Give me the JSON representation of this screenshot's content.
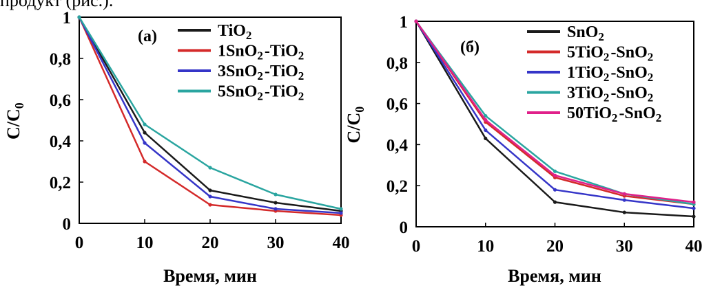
{
  "header": {
    "text": "продукт (рис.)."
  },
  "colors": {
    "black": "#1a1a1a",
    "red": "#d42a2a",
    "blue": "#3535c8",
    "teal": "#2aa5a0",
    "magenta": "#e0208a"
  },
  "chart_data": [
    {
      "type": "line",
      "panel_label": "(a)",
      "xlabel": "Время, мин",
      "ylabel": "C/C₀",
      "x": [
        0,
        10,
        20,
        30,
        40
      ],
      "xticks": [
        "0",
        "10",
        "20",
        "30",
        "40"
      ],
      "yticks": [
        "0",
        "0,2",
        "0,4",
        "0,6",
        "0,8",
        "1"
      ],
      "xlim": [
        0,
        40
      ],
      "ylim": [
        0,
        1
      ],
      "legend_position": "top-right",
      "series": [
        {
          "name": "TiO₂",
          "color": "#1a1a1a",
          "values": [
            1,
            0.44,
            0.16,
            0.1,
            0.06
          ]
        },
        {
          "name": "1SnO₂-TiO₂",
          "color": "#d42a2a",
          "values": [
            1,
            0.3,
            0.09,
            0.06,
            0.04
          ]
        },
        {
          "name": "3SnO₂-TiO₂",
          "color": "#3535c8",
          "values": [
            1,
            0.39,
            0.13,
            0.07,
            0.05
          ]
        },
        {
          "name": "5SnO₂-TiO₂",
          "color": "#2aa5a0",
          "values": [
            1,
            0.48,
            0.27,
            0.14,
            0.07
          ]
        }
      ]
    },
    {
      "type": "line",
      "panel_label": "(б)",
      "xlabel": "Время, мин",
      "ylabel": "C/C₀",
      "x": [
        0,
        10,
        20,
        30,
        40
      ],
      "xticks": [
        "0",
        "10",
        "20",
        "30",
        "40"
      ],
      "yticks": [
        "0",
        "0,2",
        "0,4",
        "0,6",
        "0,8",
        "1"
      ],
      "xlim": [
        0,
        40
      ],
      "ylim": [
        0,
        1
      ],
      "legend_position": "top-right",
      "series": [
        {
          "name": "SnO₂",
          "color": "#1a1a1a",
          "values": [
            1,
            0.43,
            0.12,
            0.07,
            0.05
          ]
        },
        {
          "name": "5TiO₂-SnO₂",
          "color": "#d42a2a",
          "values": [
            1,
            0.51,
            0.24,
            0.15,
            0.11
          ]
        },
        {
          "name": "1TiO₂-SnO₂",
          "color": "#3535c8",
          "values": [
            1,
            0.47,
            0.18,
            0.13,
            0.09
          ]
        },
        {
          "name": "3TiO₂-SnO₂",
          "color": "#2aa5a0",
          "values": [
            1,
            0.54,
            0.27,
            0.16,
            0.11
          ]
        },
        {
          "name": "50TiO₂-SnO₂",
          "color": "#e0208a",
          "values": [
            1,
            0.52,
            0.25,
            0.16,
            0.12
          ]
        }
      ]
    }
  ]
}
